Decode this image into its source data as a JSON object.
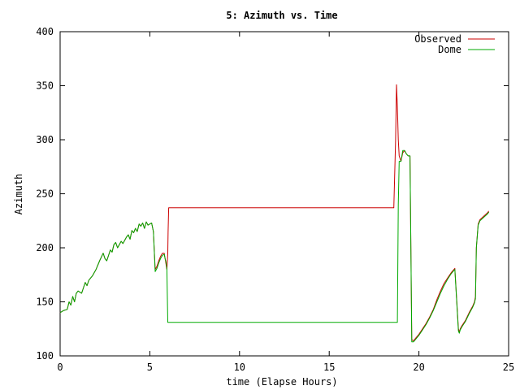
{
  "chart_data": {
    "type": "line",
    "title": "5: Azimuth vs. Time",
    "xlabel": "time (Elapse Hours)",
    "ylabel": "Azimuth",
    "xlim": [
      0,
      25
    ],
    "ylim": [
      100,
      400
    ],
    "xticks": [
      0,
      5,
      10,
      15,
      20,
      25
    ],
    "yticks": [
      100,
      150,
      200,
      250,
      300,
      350,
      400
    ],
    "grid": false,
    "legend_position": "top-right",
    "series": [
      {
        "name": "Observed",
        "color": "#cc0000",
        "x": [
          0,
          0.2,
          0.4,
          0.5,
          0.6,
          0.7,
          0.8,
          0.9,
          1.0,
          1.2,
          1.4,
          1.5,
          1.6,
          1.8,
          2.0,
          2.2,
          2.4,
          2.5,
          2.6,
          2.8,
          2.9,
          3.0,
          3.1,
          3.2,
          3.4,
          3.5,
          3.7,
          3.8,
          3.9,
          4.0,
          4.1,
          4.2,
          4.3,
          4.4,
          4.5,
          4.6,
          4.7,
          4.8,
          4.9,
          5.0,
          5.1,
          5.2,
          5.3,
          5.4,
          5.5,
          5.6,
          5.7,
          5.8,
          5.85,
          5.9,
          5.95,
          6.0,
          6.02,
          6.05,
          6.1,
          7,
          8,
          9,
          10,
          11,
          12,
          13,
          14,
          15,
          16,
          17,
          18,
          18.5,
          18.6,
          18.7,
          18.75,
          18.8,
          18.85,
          18.9,
          19.0,
          19.1,
          19.2,
          19.3,
          19.4,
          19.5,
          19.55,
          19.6,
          19.7,
          19.8,
          20.0,
          20.2,
          20.4,
          20.6,
          20.8,
          21.0,
          21.2,
          21.4,
          21.6,
          21.8,
          22.0,
          22.2,
          22.25,
          22.3,
          22.4,
          22.6,
          22.8,
          23.0,
          23.1,
          23.15,
          23.2,
          23.3,
          23.4,
          23.6,
          23.8,
          23.9
        ],
        "y": [
          140,
          142,
          143,
          150,
          147,
          155,
          150,
          158,
          160,
          158,
          168,
          165,
          170,
          174,
          180,
          188,
          195,
          190,
          188,
          198,
          196,
          203,
          205,
          200,
          206,
          204,
          210,
          212,
          208,
          216,
          214,
          218,
          215,
          222,
          220,
          223,
          218,
          224,
          221,
          222,
          223,
          215,
          180,
          183,
          188,
          192,
          195,
          195,
          190,
          185,
          180,
          195,
          215,
          237,
          237,
          237,
          237,
          237,
          237,
          237,
          237,
          237,
          237,
          237,
          237,
          237,
          237,
          237,
          237,
          300,
          351,
          330,
          300,
          285,
          280,
          288,
          290,
          287,
          285,
          285,
          200,
          115,
          114,
          116,
          120,
          125,
          130,
          136,
          143,
          152,
          160,
          167,
          172,
          177,
          181,
          125,
          122,
          125,
          128,
          133,
          140,
          146,
          150,
          155,
          200,
          222,
          226,
          229,
          232,
          234
        ]
      },
      {
        "name": "Dome",
        "color": "#00aa00",
        "x": [
          0,
          0.2,
          0.4,
          0.5,
          0.6,
          0.7,
          0.8,
          0.9,
          1.0,
          1.2,
          1.4,
          1.5,
          1.6,
          1.8,
          2.0,
          2.2,
          2.4,
          2.5,
          2.6,
          2.8,
          2.9,
          3.0,
          3.1,
          3.2,
          3.4,
          3.5,
          3.7,
          3.8,
          3.9,
          4.0,
          4.1,
          4.2,
          4.3,
          4.4,
          4.5,
          4.6,
          4.7,
          4.8,
          4.9,
          5.0,
          5.1,
          5.2,
          5.3,
          5.4,
          5.5,
          5.6,
          5.7,
          5.8,
          5.85,
          5.9,
          5.95,
          6.0,
          6.05,
          6.1,
          7,
          8,
          9,
          10,
          11,
          12,
          13,
          14,
          15,
          16,
          17,
          18,
          18.5,
          18.8,
          18.85,
          18.9,
          19.0,
          19.1,
          19.2,
          19.3,
          19.4,
          19.5,
          19.55,
          19.6,
          19.7,
          19.8,
          20.0,
          20.2,
          20.4,
          20.6,
          20.8,
          21.0,
          21.2,
          21.4,
          21.6,
          21.8,
          22.0,
          22.2,
          22.25,
          22.3,
          22.4,
          22.6,
          22.8,
          23.0,
          23.1,
          23.15,
          23.2,
          23.3,
          23.4,
          23.6,
          23.8,
          23.9
        ],
        "y": [
          140,
          142,
          143,
          150,
          147,
          155,
          150,
          158,
          160,
          158,
          168,
          165,
          170,
          174,
          180,
          188,
          195,
          190,
          188,
          198,
          196,
          203,
          205,
          200,
          206,
          204,
          210,
          212,
          208,
          216,
          214,
          218,
          215,
          222,
          220,
          223,
          218,
          224,
          221,
          222,
          223,
          215,
          178,
          181,
          186,
          190,
          193,
          194,
          190,
          187,
          180,
          131,
          131,
          131,
          131,
          131,
          131,
          131,
          131,
          131,
          131,
          131,
          131,
          131,
          131,
          131,
          131,
          131,
          240,
          280,
          280,
          290,
          290,
          287,
          285,
          285,
          200,
          113,
          113,
          115,
          119,
          124,
          129,
          135,
          142,
          150,
          158,
          165,
          171,
          176,
          180,
          123,
          121,
          124,
          127,
          132,
          139,
          145,
          149,
          153,
          200,
          221,
          225,
          228,
          231,
          233
        ]
      }
    ]
  }
}
